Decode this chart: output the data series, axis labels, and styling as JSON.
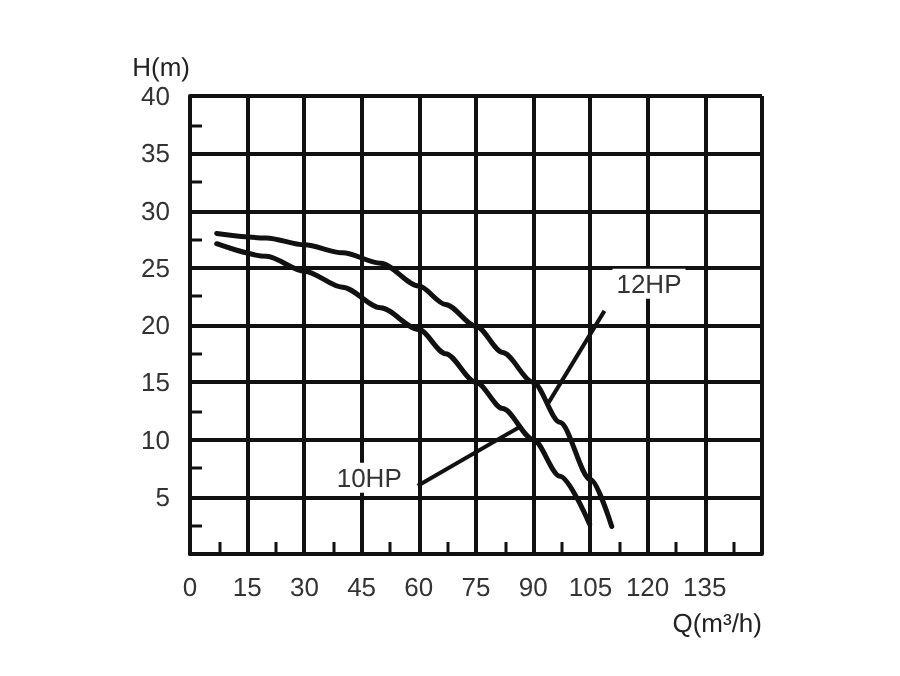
{
  "chart_data": {
    "type": "line",
    "xlabel": "Q(m³/h)",
    "ylabel": "H(m)",
    "xlim": [
      0,
      150
    ],
    "ylim": [
      0,
      40
    ],
    "xticks": [
      0,
      15,
      30,
      45,
      60,
      75,
      90,
      105,
      120,
      135,
      {
        "value": 150,
        "label": null
      }
    ],
    "yticks": [
      {
        "value": 0,
        "label": null
      },
      5,
      10,
      15,
      20,
      25,
      30,
      35,
      40
    ],
    "grid": true,
    "marker": "none",
    "line_style": "solid",
    "series": [
      {
        "color": "#111111",
        "x": [
          7,
          20,
          30,
          40,
          50,
          60,
          67,
          75,
          82,
          90,
          97,
          105,
          110.6
        ],
        "values": [
          28.0,
          27.6,
          27.0,
          26.3,
          25.4,
          23.4,
          21.8,
          19.9,
          17.6,
          15.0,
          11.5,
          6.5,
          2.4
        ]
      },
      {
        "color": "#111111",
        "x": [
          7,
          20,
          30,
          40,
          50,
          60,
          67,
          75,
          82,
          90,
          97,
          104.8
        ],
        "values": [
          27.1,
          26.0,
          24.7,
          23.3,
          21.5,
          19.6,
          17.5,
          15.0,
          12.7,
          10.0,
          6.8,
          2.6
        ]
      }
    ],
    "annotations": [
      {
        "text": "12HP",
        "x": 94,
        "y": 13.2
      },
      {
        "text": "10HP",
        "x": 87,
        "y": 11.2
      }
    ]
  }
}
